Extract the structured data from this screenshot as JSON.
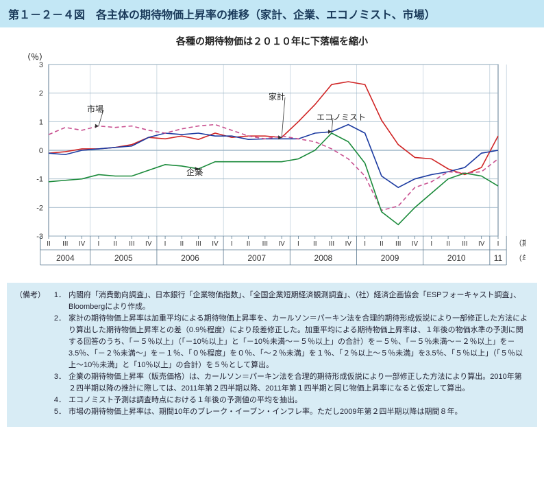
{
  "title": "第１－２－４図　各主体の期待物価上昇率の推移（家計、企業、エコノミスト、市場）",
  "subtitle": "各種の期待物価は２０１０年に下落幅を縮小",
  "chart": {
    "type": "line",
    "y_axis": {
      "label": "（％）",
      "min": -3,
      "max": 3,
      "step": 1
    },
    "x_axis": {
      "period_label": "（期）",
      "year_label": "（年）",
      "quarters": [
        "II",
        "III",
        "IV",
        "I",
        "II",
        "III",
        "IV",
        "I",
        "II",
        "III",
        "IV",
        "I",
        "II",
        "III",
        "IV",
        "I",
        "II",
        "III",
        "IV",
        "I",
        "II",
        "III",
        "IV",
        "I",
        "II",
        "III",
        "IV",
        "I"
      ],
      "year_groups": [
        {
          "label": "2004",
          "span": 3
        },
        {
          "label": "2005",
          "span": 4
        },
        {
          "label": "2006",
          "span": 4
        },
        {
          "label": "2007",
          "span": 4
        },
        {
          "label": "2008",
          "span": 4
        },
        {
          "label": "2009",
          "span": 4
        },
        {
          "label": "2010",
          "span": 4
        },
        {
          "label": "11",
          "span": 1
        }
      ]
    },
    "grid_color": "#9fb7c8",
    "axis_color": "#5c7a90",
    "background": "#ffffff",
    "tick_font_size": 11,
    "series": [
      {
        "name": "家計",
        "color": "#d02525",
        "dash": "",
        "width": 1.6,
        "data": [
          -0.1,
          -0.05,
          0.05,
          0.05,
          0.1,
          0.2,
          0.45,
          0.4,
          0.5,
          0.38,
          0.6,
          0.45,
          0.5,
          0.5,
          0.45,
          1.0,
          1.6,
          2.3,
          2.4,
          2.3,
          1.05,
          0.2,
          -0.25,
          -0.3,
          -0.65,
          -0.85,
          -0.6,
          0.5
        ],
        "label_xy": [
          365,
          60
        ]
      },
      {
        "name": "エコノミスト",
        "color": "#1b3aa0",
        "dash": "",
        "width": 1.6,
        "data": [
          -0.1,
          -0.15,
          0.0,
          0.05,
          0.1,
          0.15,
          0.45,
          0.6,
          0.55,
          0.6,
          0.5,
          0.5,
          0.38,
          0.4,
          0.4,
          0.4,
          0.6,
          0.65,
          0.9,
          0.6,
          -0.9,
          -1.3,
          -1.0,
          -0.85,
          -0.75,
          -0.6,
          -0.1,
          0.0
        ],
        "label_xy": [
          435,
          90
        ]
      },
      {
        "name": "市場",
        "color": "#c85090",
        "dash": "6 4",
        "width": 1.6,
        "data": [
          0.55,
          0.8,
          0.7,
          0.85,
          0.8,
          0.85,
          0.7,
          0.6,
          0.75,
          0.85,
          0.9,
          0.7,
          0.5,
          0.4,
          0.5,
          0.4,
          0.3,
          0.05,
          -0.3,
          -0.9,
          -2.1,
          -1.95,
          -1.3,
          -1.1,
          -0.75,
          -0.8,
          -0.75,
          -0.3
        ],
        "label_xy": [
          100,
          78
        ]
      },
      {
        "name": "企業",
        "color": "#1a8a3a",
        "dash": "",
        "width": 1.6,
        "data": [
          -1.1,
          -1.05,
          -1.0,
          -0.85,
          -0.9,
          -0.9,
          -0.7,
          -0.5,
          -0.55,
          -0.65,
          -0.4,
          -0.4,
          -0.4,
          -0.4,
          -0.4,
          -0.3,
          0.0,
          0.6,
          0.3,
          -0.45,
          -2.15,
          -2.6,
          -2.0,
          -1.5,
          -1.0,
          -0.8,
          -0.9,
          -1.25
        ],
        "label_xy": [
          245,
          170
        ]
      }
    ]
  },
  "notes": {
    "head": "（備考）",
    "items": [
      "内閣府「消費動向調査」、日本銀行「企業物価指数」、「全国企業短期経済観測調査」、（社）経済企画協会「ESPフォーキャスト調査」、Bloombergにより作成。",
      "家計の期待物価上昇率は加重平均による期待物価上昇率を、カールソン＝パーキン法を合理的期待形成仮説により一部修正した方法により算出した期待物価上昇率との差（0.9％程度）により段差修正した。加重平均による期待物価上昇率は、１年後の物価水準の予測に関する回答のうち、「－５％以上」（「－10％以上」と「－10％未満～－５％以上」の合計）を－５％、「－５％未満～－２％以上」を－3.5％、「－２％未満～」を－１％、「０％程度」を０％、「～２％未満」を１％、「２％以上～５％未満」を3.5％、「５％以上」（「５％以上～10％未満」と「10％以上」の合計）を５％として算出。",
      "企業の期待物価上昇率（販売価格）は、カールソン＝パーキン法を合理的期待形成仮説により一部修正した方法により算出。2010年第２四半期以降の推計に際しては、2011年第２四半期以降、2011年第１四半期と同じ物価上昇率になると仮定して算出。",
      "エコノミスト予測は調査時点における１年後の予測値の平均を抽出。",
      "市場の期待物価上昇率は、期間10年のブレーク・イーブン・インフレ率。ただし2009年第２四半期以降は期間８年。"
    ]
  }
}
